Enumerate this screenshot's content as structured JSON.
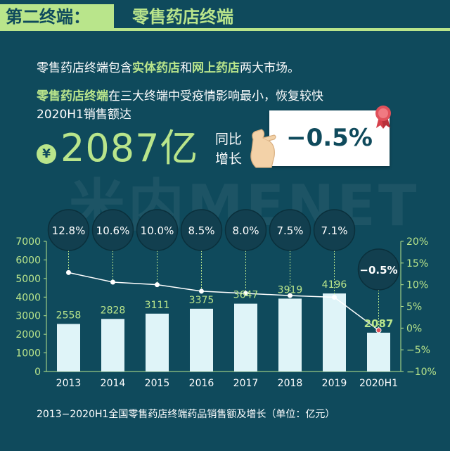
{
  "header": {
    "section_label": "第二终端：",
    "title": "零售药店终端"
  },
  "intro": {
    "line1_prefix": "零售药店终端包含",
    "line1_hl1": "实体药店",
    "line1_mid": "和",
    "line1_hl2": "网上药店",
    "line1_suffix": "两大市场。",
    "line2_hl": "零售药店终端",
    "line2_rest": "在三大终端中受疫情影响最小，恢复较快",
    "line3": "2020H1销售额达"
  },
  "highlight": {
    "currency_symbol": "¥",
    "value": "2087亿",
    "yoy_line1": "同比",
    "yoy_line2": "增长",
    "growth": "−0.5%"
  },
  "watermark": "米内MENET",
  "caption": "2013−2020H1全国零售药店终端药品销售额及增长（单位：亿元）",
  "colors": {
    "background": "#0f4a5c",
    "accent": "#b9e58b",
    "bar": "#dff4f8",
    "axis_text": "#b9e58b",
    "line": "#ffffff",
    "bubble": "#123f4f"
  },
  "chart_data": {
    "type": "bar",
    "categories": [
      "2013",
      "2014",
      "2015",
      "2016",
      "2017",
      "2018",
      "2019",
      "2020H1"
    ],
    "series": [
      {
        "values": [
          2558,
          2828,
          3111,
          3375,
          3647,
          3919,
          4196,
          2087
        ],
        "axis": "left",
        "kind": "bar"
      },
      {
        "values": [
          12.8,
          10.6,
          10.0,
          8.5,
          8.0,
          7.5,
          7.1,
          -0.5
        ],
        "axis": "right",
        "kind": "line"
      }
    ],
    "value_labels": [
      "2558",
      "2828",
      "3111",
      "3375",
      "3647",
      "3919",
      "4196",
      "2087"
    ],
    "growth_labels": [
      "12.8%",
      "10.6%",
      "10.0%",
      "8.5%",
      "8.0%",
      "7.5%",
      "7.1%",
      "−0.5%"
    ],
    "y_left_ticks": [
      "0",
      "1000",
      "2000",
      "3000",
      "4000",
      "5000",
      "6000",
      "7000"
    ],
    "y_right_ticks": [
      "−10%",
      "−5%",
      "0%",
      "5%",
      "10%",
      "15%",
      "20%"
    ],
    "ylim_left": [
      0,
      7000
    ],
    "ylim_right": [
      -10,
      20
    ],
    "grid": false
  }
}
